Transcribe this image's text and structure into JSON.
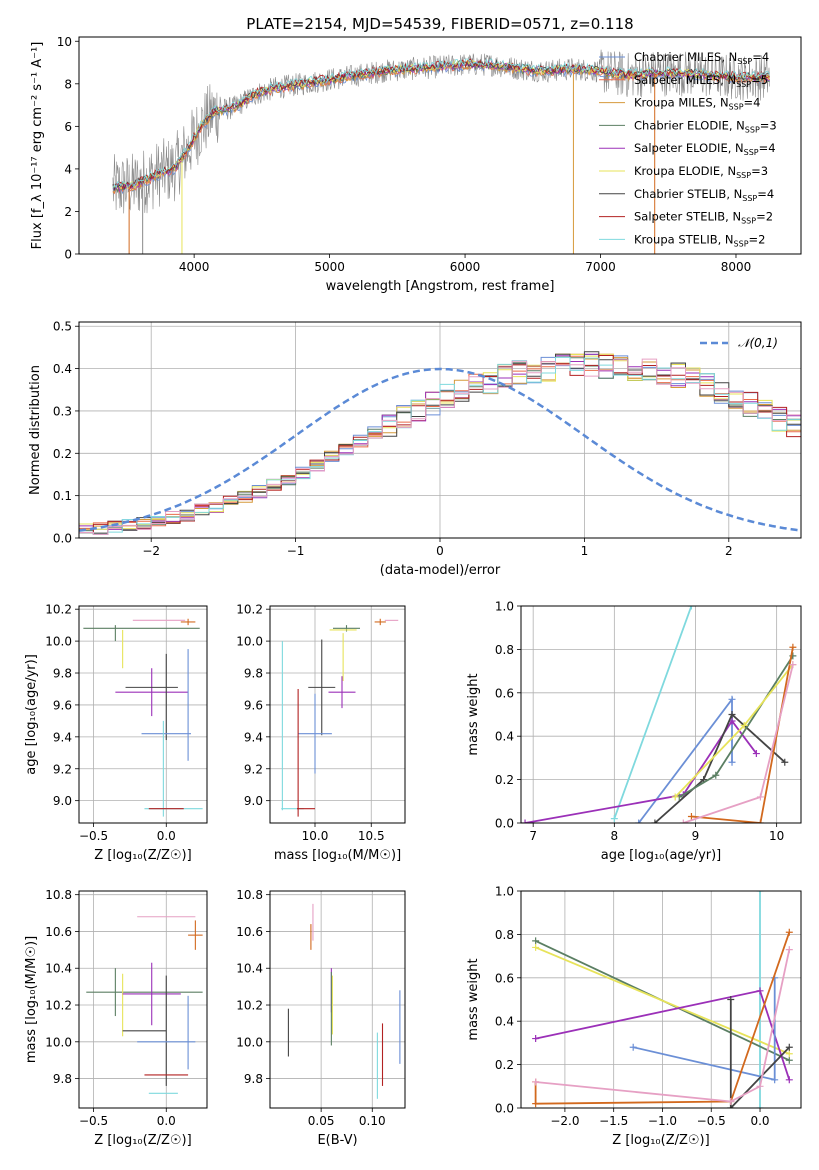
{
  "figure": {
    "title": "PLATE=2154, MJD=54539, FIBERID=0571, z=0.118"
  },
  "chart_data": [
    {
      "id": "spectrum",
      "type": "line",
      "title": "PLATE=2154, MJD=54539, FIBERID=0571, z=0.118",
      "xlabel": "wavelength [Angstrom, rest frame]",
      "ylabel": "Flux [f_λ 10⁻¹⁷ erg cm⁻² s⁻¹ A⁻¹]",
      "xlim": [
        3150,
        8480
      ],
      "ylim": [
        0,
        10.2
      ],
      "xticks": [
        4000,
        5000,
        6000,
        7000,
        8000
      ],
      "yticks": [
        0,
        2,
        4,
        6,
        8,
        10
      ],
      "grid": false,
      "legend_position": "upper right",
      "continuum_x": [
        3400,
        3550,
        3650,
        3750,
        3850,
        3950,
        4050,
        4150,
        4300,
        4450,
        4600,
        4800,
        5000,
        5200,
        5400,
        5600,
        5800,
        6000,
        6200,
        6400,
        6600,
        6800,
        7000,
        7200,
        7400,
        7600,
        7800,
        8000,
        8200
      ],
      "continuum_y": [
        3.1,
        3.2,
        3.5,
        3.8,
        4.0,
        4.9,
        6.0,
        6.7,
        6.9,
        7.5,
        7.8,
        8.0,
        8.2,
        8.4,
        8.6,
        8.7,
        8.8,
        8.9,
        8.9,
        8.7,
        8.6,
        8.7,
        8.6,
        8.4,
        8.5,
        8.5,
        8.4,
        8.3,
        8.3
      ],
      "series": [
        {
          "name": "Chabrier MILES, N_SSP=4",
          "color": "#6b8fd6"
        },
        {
          "name": "Salpeter MILES, N_SSP=5",
          "color": "#e96c4a"
        },
        {
          "name": "Kroupa MILES, N_SSP=4",
          "color": "#d69a3b"
        },
        {
          "name": "Chabrier ELODIE, N_SSP=3",
          "color": "#5b7f63"
        },
        {
          "name": "Salpeter ELODIE, N_SSP=4",
          "color": "#9b30b8"
        },
        {
          "name": "Kroupa ELODIE, N_SSP=3",
          "color": "#e7e35a"
        },
        {
          "name": "Chabrier STELIB, N_SSP=4",
          "color": "#444444"
        },
        {
          "name": "Salpeter STELIB, N_SSP=2",
          "color": "#b22222"
        },
        {
          "name": "Kroupa STELIB, N_SSP=2",
          "color": "#7fd9de"
        }
      ],
      "data_color": "#888888",
      "dips": [
        {
          "x": 3520,
          "color": "#d2691e"
        },
        {
          "x": 3620,
          "color": "#888888"
        },
        {
          "x": 3910,
          "color": "#e7e35a"
        },
        {
          "x": 6800,
          "color": "#d69a3b"
        },
        {
          "x": 7400,
          "color": "#d2691e"
        }
      ]
    },
    {
      "id": "residuals",
      "type": "step",
      "xlabel": "(data-model)/error",
      "ylabel": "Normed distribution",
      "xlim": [
        -2.5,
        2.5
      ],
      "ylim": [
        0,
        0.51
      ],
      "xticks": [
        -2,
        -1,
        0,
        1,
        2
      ],
      "yticks": [
        0.0,
        0.1,
        0.2,
        0.3,
        0.4,
        0.5
      ],
      "grid": true,
      "legend_position": "upper right",
      "gaussian_label": "𝒩(0,1)",
      "gaussian_color": "#5b8ad6",
      "bin_width": 0.1,
      "base_bins": [
        0.02,
        0.022,
        0.025,
        0.03,
        0.035,
        0.04,
        0.048,
        0.055,
        0.065,
        0.075,
        0.088,
        0.098,
        0.11,
        0.125,
        0.14,
        0.155,
        0.17,
        0.19,
        0.21,
        0.23,
        0.25,
        0.27,
        0.29,
        0.305,
        0.32,
        0.335,
        0.35,
        0.36,
        0.37,
        0.38,
        0.39,
        0.395,
        0.4,
        0.405,
        0.41,
        0.41,
        0.405,
        0.4,
        0.4,
        0.395,
        0.39,
        0.385,
        0.375,
        0.36,
        0.345,
        0.33,
        0.315,
        0.3,
        0.28,
        0.265,
        0.245,
        0.225,
        0.21,
        0.19,
        0.175,
        0.16,
        0.14,
        0.125,
        0.11,
        0.1,
        0.085,
        0.075,
        0.065,
        0.057,
        0.05,
        0.045,
        0.04,
        0.035,
        0.033,
        0.03,
        0.028,
        0.027,
        0.026,
        0.025,
        0.025,
        0.025
      ],
      "series_colors": [
        "#6b8fd6",
        "#e96c4a",
        "#d69a3b",
        "#5b7f63",
        "#9b30b8",
        "#e7e35a",
        "#444444",
        "#b22222",
        "#7fd9de",
        "#e6a0c4"
      ]
    },
    {
      "id": "z-age",
      "type": "errorbar",
      "xlabel": "Z [log₁₀(Z/Z☉)]",
      "ylabel": "age  [log₁₀(age/yr)]",
      "xlim": [
        -0.6,
        0.28
      ],
      "ylim": [
        8.86,
        10.22
      ],
      "xticks": [
        -0.5,
        0.0
      ],
      "yticks": [
        9.0,
        9.2,
        9.4,
        9.6,
        9.8,
        10.0,
        10.2
      ],
      "grid": true,
      "points": [
        {
          "x": -0.05,
          "y": 10.13,
          "xerr": 0.18,
          "yerr": 0.0,
          "color": "#e6a0c4"
        },
        {
          "x": 0.15,
          "y": 10.12,
          "xerr": 0.05,
          "yerr": 0.02,
          "color": "#d2691e"
        },
        {
          "x": -0.17,
          "y": 10.08,
          "xerr": 0.4,
          "yerr": 0.0,
          "color": "#5b7f63"
        },
        {
          "x": -0.35,
          "y": 10.05,
          "xerr": 0.0,
          "yerr": 0.05,
          "color": "#5b7f63"
        },
        {
          "x": -0.3,
          "y": 9.95,
          "xerr": 0.0,
          "yerr": 0.12,
          "color": "#e7e35a"
        },
        {
          "x": -0.1,
          "y": 9.68,
          "xerr": 0.25,
          "yerr": 0.15,
          "color": "#9b30b8"
        },
        {
          "x": -0.1,
          "y": 9.71,
          "xerr": 0.18,
          "yerr": 0.0,
          "color": "#444444"
        },
        {
          "x": 0.0,
          "y": 9.65,
          "xerr": 0.0,
          "yerr": 0.27,
          "color": "#444444"
        },
        {
          "x": 0.0,
          "y": 9.42,
          "xerr": 0.17,
          "yerr": 0.0,
          "color": "#6b8fd6"
        },
        {
          "x": 0.15,
          "y": 9.6,
          "xerr": 0.0,
          "yerr": 0.35,
          "color": "#6b8fd6"
        },
        {
          "x": -0.02,
          "y": 9.2,
          "xerr": 0.0,
          "yerr": 0.3,
          "color": "#7fd9de"
        },
        {
          "x": 0.05,
          "y": 8.95,
          "xerr": 0.2,
          "yerr": 0.0,
          "color": "#7fd9de"
        },
        {
          "x": 0.0,
          "y": 8.95,
          "xerr": 0.12,
          "yerr": 0.0,
          "color": "#b22222"
        }
      ]
    },
    {
      "id": "mass-age",
      "type": "errorbar",
      "xlabel": "mass [log₁₀(M/M☉)]",
      "ylabel": "",
      "xlim": [
        9.6,
        10.8
      ],
      "ylim": [
        8.86,
        10.22
      ],
      "xticks": [
        10.0,
        10.5
      ],
      "yticks": [
        9.0,
        9.2,
        9.4,
        9.6,
        9.8,
        10.0,
        10.2
      ],
      "grid": true,
      "points": [
        {
          "x": 10.68,
          "y": 10.13,
          "xerr": 0.06,
          "yerr": 0.0,
          "color": "#e6a0c4"
        },
        {
          "x": 10.58,
          "y": 10.12,
          "xerr": 0.05,
          "yerr": 0.02,
          "color": "#d2691e"
        },
        {
          "x": 10.28,
          "y": 10.08,
          "xerr": 0.12,
          "yerr": 0.02,
          "color": "#5b7f63"
        },
        {
          "x": 10.25,
          "y": 10.07,
          "xerr": 0.12,
          "yerr": 0.0,
          "color": "#e7e35a"
        },
        {
          "x": 10.25,
          "y": 9.9,
          "xerr": 0.0,
          "yerr": 0.15,
          "color": "#e7e35a"
        },
        {
          "x": 10.24,
          "y": 9.68,
          "xerr": 0.12,
          "yerr": 0.1,
          "color": "#9b30b8"
        },
        {
          "x": 10.06,
          "y": 9.71,
          "xerr": 0.12,
          "yerr": 0.3,
          "color": "#444444"
        },
        {
          "x": 10.0,
          "y": 9.42,
          "xerr": 0.15,
          "yerr": 0.25,
          "color": "#6b8fd6"
        },
        {
          "x": 9.71,
          "y": 9.47,
          "xerr": 0.0,
          "yerr": 0.53,
          "color": "#7fd9de"
        },
        {
          "x": 9.8,
          "y": 8.95,
          "xerr": 0.1,
          "yerr": 0.0,
          "color": "#7fd9de"
        },
        {
          "x": 9.85,
          "y": 9.3,
          "xerr": 0.0,
          "yerr": 0.4,
          "color": "#b22222"
        },
        {
          "x": 9.92,
          "y": 8.95,
          "xerr": 0.08,
          "yerr": 0.0,
          "color": "#b22222"
        }
      ]
    },
    {
      "id": "age-weight",
      "type": "line",
      "xlabel": "age  [log₁₀(age/yr)]",
      "ylabel": "mass weight",
      "xlim": [
        6.85,
        10.3
      ],
      "ylim": [
        0,
        1.0
      ],
      "xticks": [
        7,
        8,
        9,
        10
      ],
      "yticks": [
        0.0,
        0.2,
        0.4,
        0.6,
        0.8,
        1.0
      ],
      "grid": true,
      "series": [
        {
          "color": "#7fd9de",
          "x": [
            8.0,
            8.95
          ],
          "y": [
            0.02,
            1.0
          ]
        },
        {
          "color": "#6b8fd6",
          "x": [
            8.3,
            9.45,
            9.45
          ],
          "y": [
            0.0,
            0.57,
            0.28
          ]
        },
        {
          "color": "#9b30b8",
          "x": [
            6.9,
            8.85,
            9.45,
            9.75
          ],
          "y": [
            0.0,
            0.13,
            0.47,
            0.32
          ]
        },
        {
          "color": "#444444",
          "x": [
            8.5,
            9.1,
            9.45,
            10.1
          ],
          "y": [
            0.0,
            0.2,
            0.5,
            0.28
          ]
        },
        {
          "color": "#5b7f63",
          "x": [
            8.8,
            9.25,
            10.2
          ],
          "y": [
            0.12,
            0.22,
            0.77
          ]
        },
        {
          "color": "#e7e35a",
          "x": [
            8.75,
            9.6,
            10.2
          ],
          "y": [
            0.12,
            0.45,
            0.73
          ]
        },
        {
          "color": "#d2691e",
          "x": [
            8.95,
            9.8,
            10.2
          ],
          "y": [
            0.03,
            0.0,
            0.81
          ]
        },
        {
          "color": "#e6a0c4",
          "x": [
            8.85,
            9.8,
            10.2
          ],
          "y": [
            0.0,
            0.12,
            0.73
          ]
        }
      ]
    },
    {
      "id": "z-mass",
      "type": "errorbar",
      "xlabel": "Z [log₁₀(Z/Z☉)]",
      "ylabel": "mass [log₁₀(M/M☉)]",
      "xlim": [
        -0.6,
        0.28
      ],
      "ylim": [
        9.64,
        10.82
      ],
      "xticks": [
        -0.5,
        0.0
      ],
      "yticks": [
        9.8,
        10.0,
        10.2,
        10.4,
        10.6,
        10.8
      ],
      "grid": true,
      "points": [
        {
          "x": 0.0,
          "y": 10.68,
          "xerr": 0.2,
          "yerr": 0.0,
          "color": "#e6a0c4"
        },
        {
          "x": 0.2,
          "y": 10.58,
          "xerr": 0.05,
          "yerr": 0.08,
          "color": "#d2691e"
        },
        {
          "x": -0.15,
          "y": 10.27,
          "xerr": 0.4,
          "yerr": 0.0,
          "color": "#5b7f63"
        },
        {
          "x": -0.35,
          "y": 10.27,
          "xerr": 0.0,
          "yerr": 0.13,
          "color": "#5b7f63"
        },
        {
          "x": -0.3,
          "y": 10.2,
          "xerr": 0.0,
          "yerr": 0.17,
          "color": "#e7e35a"
        },
        {
          "x": -0.1,
          "y": 10.26,
          "xerr": 0.2,
          "yerr": 0.17,
          "color": "#9b30b8"
        },
        {
          "x": -0.15,
          "y": 10.06,
          "xerr": 0.15,
          "yerr": 0.0,
          "color": "#444444"
        },
        {
          "x": 0.0,
          "y": 10.06,
          "xerr": 0.0,
          "yerr": 0.3,
          "color": "#444444"
        },
        {
          "x": 0.0,
          "y": 10.0,
          "xerr": 0.2,
          "yerr": 0.0,
          "color": "#6b8fd6"
        },
        {
          "x": 0.15,
          "y": 10.05,
          "xerr": 0.0,
          "yerr": 0.2,
          "color": "#6b8fd6"
        },
        {
          "x": -0.02,
          "y": 9.72,
          "xerr": 0.1,
          "yerr": 0.0,
          "color": "#7fd9de"
        },
        {
          "x": 0.0,
          "y": 9.82,
          "xerr": 0.15,
          "yerr": 0.0,
          "color": "#b22222"
        }
      ]
    },
    {
      "id": "ebv-mass",
      "type": "errorbar",
      "xlabel": "E(B-V)",
      "ylabel": "",
      "xlim": [
        0.0,
        0.132
      ],
      "ylim": [
        9.64,
        10.82
      ],
      "xticks": [
        0.05,
        0.1
      ],
      "yticks": [
        9.8,
        10.0,
        10.2,
        10.4,
        10.6,
        10.8
      ],
      "grid": true,
      "points": [
        {
          "x": 0.042,
          "y": 10.65,
          "xerr": 0.0,
          "yerr": 0.1,
          "color": "#e6a0c4"
        },
        {
          "x": 0.04,
          "y": 10.57,
          "xerr": 0.0,
          "yerr": 0.07,
          "color": "#d2691e"
        },
        {
          "x": 0.06,
          "y": 10.28,
          "xerr": 0.0,
          "yerr": 0.12,
          "color": "#9b30b8"
        },
        {
          "x": 0.061,
          "y": 10.2,
          "xerr": 0.0,
          "yerr": 0.16,
          "color": "#e7e35a"
        },
        {
          "x": 0.06,
          "y": 10.18,
          "xerr": 0.0,
          "yerr": 0.2,
          "color": "#5b7f63"
        },
        {
          "x": 0.018,
          "y": 10.05,
          "xerr": 0.0,
          "yerr": 0.13,
          "color": "#444444"
        },
        {
          "x": 0.105,
          "y": 9.87,
          "xerr": 0.0,
          "yerr": 0.18,
          "color": "#7fd9de"
        },
        {
          "x": 0.11,
          "y": 9.93,
          "xerr": 0.0,
          "yerr": 0.17,
          "color": "#b22222"
        },
        {
          "x": 0.127,
          "y": 10.08,
          "xerr": 0.0,
          "yerr": 0.2,
          "color": "#6b8fd6"
        }
      ]
    },
    {
      "id": "z-weight",
      "type": "line",
      "xlabel": "Z [log₁₀(Z/Z☉)]",
      "ylabel": "mass weight",
      "xlim": [
        -2.45,
        0.42
      ],
      "ylim": [
        0,
        1.0
      ],
      "xticks": [
        -2.0,
        -1.5,
        -1.0,
        -0.5,
        0.0
      ],
      "yticks": [
        0.0,
        0.2,
        0.4,
        0.6,
        0.8,
        1.0
      ],
      "grid": true,
      "series": [
        {
          "color": "#7fd9de",
          "x": [
            0.0,
            0.0
          ],
          "y": [
            0.0,
            1.0
          ]
        },
        {
          "color": "#5b7f63",
          "x": [
            -2.3,
            0.3
          ],
          "y": [
            0.77,
            0.22
          ]
        },
        {
          "color": "#e7e35a",
          "x": [
            -2.3,
            0.3
          ],
          "y": [
            0.74,
            0.25
          ]
        },
        {
          "color": "#9b30b8",
          "x": [
            -2.3,
            0.0,
            0.3
          ],
          "y": [
            0.32,
            0.54,
            0.13
          ]
        },
        {
          "color": "#6b8fd6",
          "x": [
            -1.3,
            0.15,
            0.15
          ],
          "y": [
            0.28,
            0.13,
            0.6
          ]
        },
        {
          "color": "#444444",
          "x": [
            -0.3,
            -0.3,
            0.3
          ],
          "y": [
            0.5,
            0.0,
            0.28
          ]
        },
        {
          "color": "#d2691e",
          "x": [
            -2.3,
            -2.3,
            -0.3,
            0.3
          ],
          "y": [
            0.12,
            0.02,
            0.03,
            0.81
          ]
        },
        {
          "color": "#e6a0c4",
          "x": [
            -2.3,
            -0.3,
            0.0,
            0.3
          ],
          "y": [
            0.12,
            0.03,
            0.1,
            0.73
          ]
        }
      ]
    }
  ]
}
